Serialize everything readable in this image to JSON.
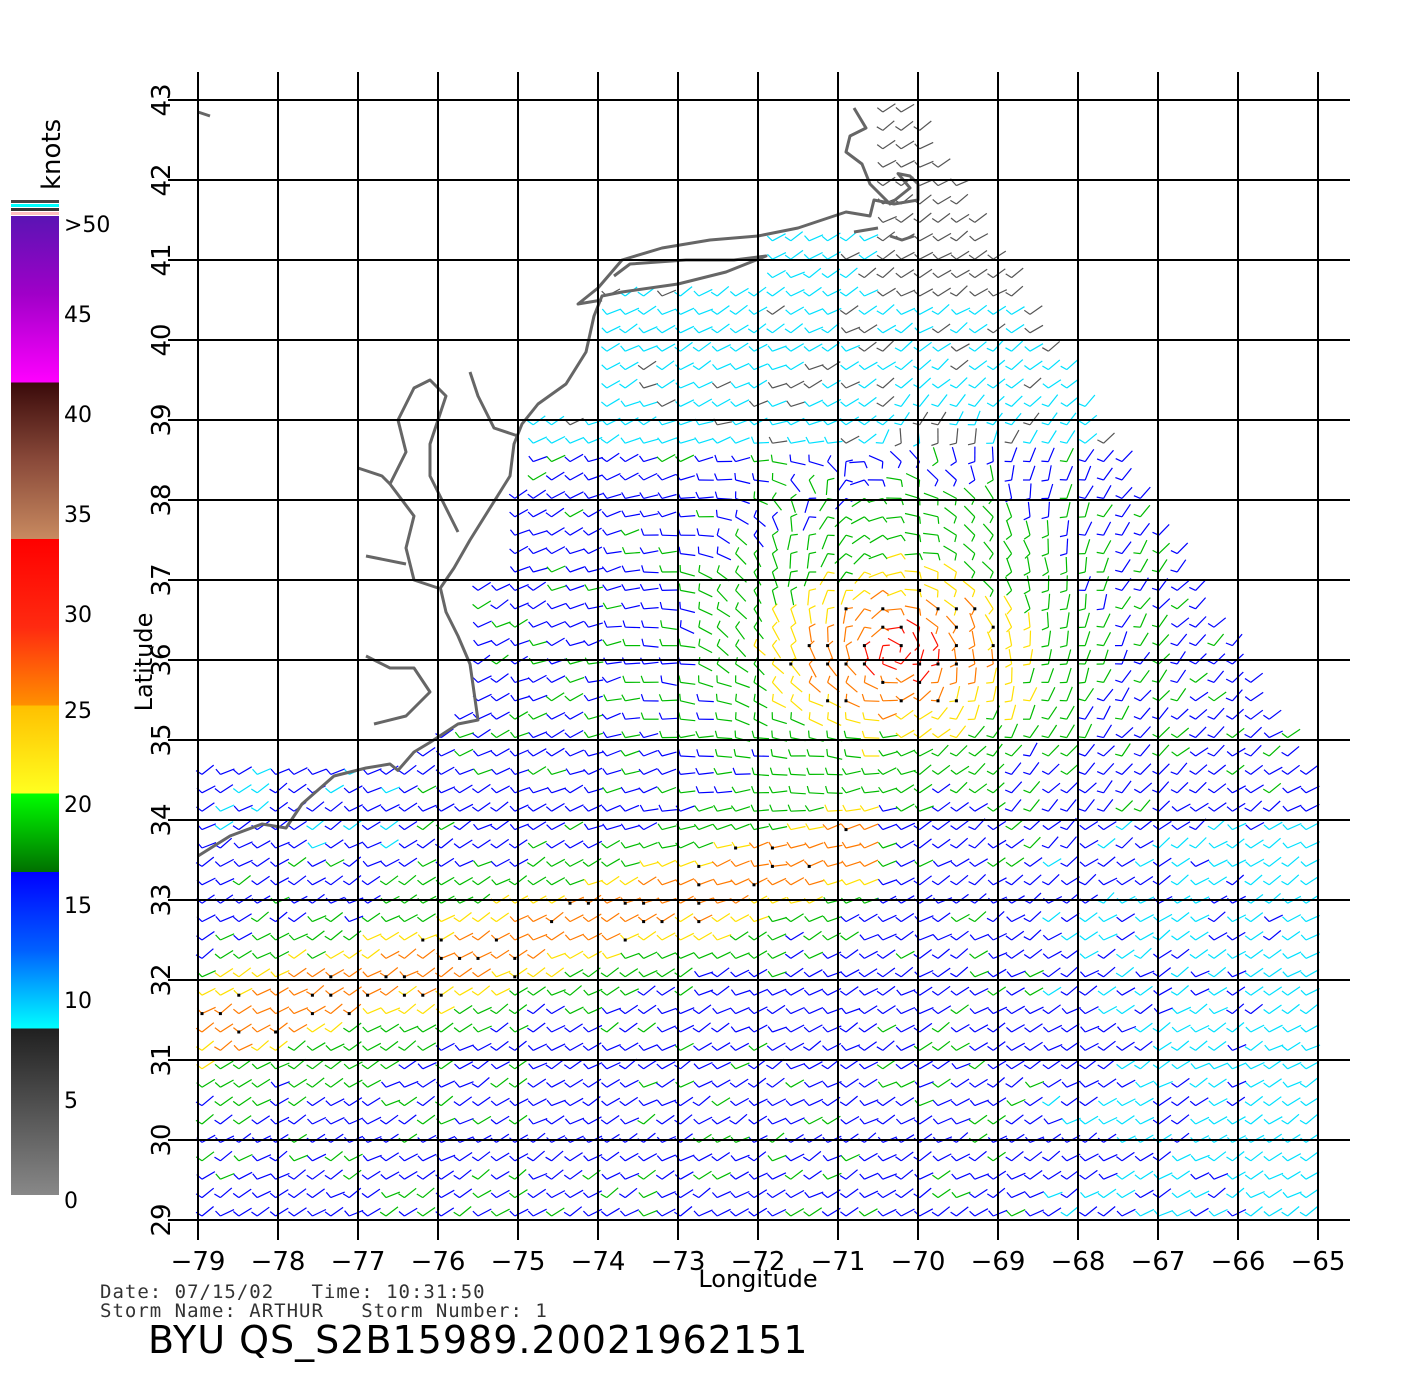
{
  "axes": {
    "x_label": "Longitude",
    "y_label": "Latitude",
    "x_ticks": [
      "−79",
      "−78",
      "−77",
      "−76",
      "−75",
      "−74",
      "−73",
      "−72",
      "−71",
      "−70",
      "−69",
      "−68",
      "−67",
      "−66",
      "−65"
    ],
    "y_ticks": [
      "29",
      "30",
      "31",
      "32",
      "33",
      "34",
      "35",
      "36",
      "37",
      "38",
      "39",
      "40",
      "41",
      "42",
      "43"
    ],
    "lon_range": [
      -79,
      -65
    ],
    "lat_range": [
      29,
      43
    ]
  },
  "colorbar": {
    "unit": "knots",
    "labels": [
      ">50",
      "45",
      "40",
      "35",
      "30",
      "25",
      "20",
      "15",
      "10",
      "5",
      "0"
    ],
    "colors": {
      "gray": "#777777",
      "cyan_blue": "#00e0ff",
      "blue": "#0000ff",
      "green": "#00bb00",
      "yellow": "#ffe000",
      "orange": "#ff7a00",
      "red": "#ff1000",
      "brown": "#6a2a1a",
      "magenta": "#ff00ff",
      "purple": "#6a10c8"
    }
  },
  "footer": {
    "date_line": "Date: 07/15/02   Time: 10:31:50",
    "storm_line": "Storm Name: ARTHUR   Storm Number: 1",
    "title": "BYU QS_S2B15989.20021962151"
  },
  "map": {
    "coastline_color": "#666666",
    "grid_color": "#000000",
    "rain_flag_color": "#000000"
  }
}
